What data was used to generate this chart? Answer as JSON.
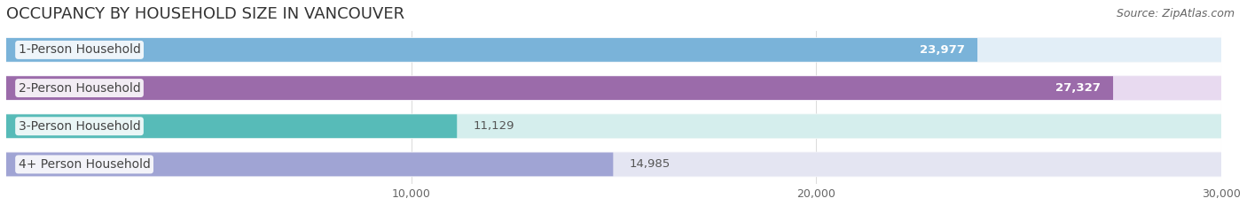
{
  "title": "OCCUPANCY BY HOUSEHOLD SIZE IN VANCOUVER",
  "source": "Source: ZipAtlas.com",
  "categories": [
    "1-Person Household",
    "2-Person Household",
    "3-Person Household",
    "4+ Person Household"
  ],
  "values": [
    23977,
    27327,
    11129,
    14985
  ],
  "bar_colors": [
    "#7ab3d9",
    "#9b6baa",
    "#57bbb8",
    "#a0a4d4"
  ],
  "bar_bg_colors": [
    "#e2eef7",
    "#e8daf0",
    "#d5eeed",
    "#e4e5f2"
  ],
  "label_text_color": "#444444",
  "value_label_colors": [
    "white",
    "white",
    "#555555",
    "#555555"
  ],
  "value_labels": [
    "23,977",
    "27,327",
    "11,129",
    "14,985"
  ],
  "xlim_max": 30000,
  "xticks": [
    10000,
    20000,
    30000
  ],
  "xtick_labels": [
    "10,000",
    "20,000",
    "30,000"
  ],
  "title_fontsize": 13,
  "source_fontsize": 9,
  "label_fontsize": 10,
  "value_fontsize": 9.5,
  "background_color": "#ffffff",
  "row_bg_colors": [
    "#f0f4f8",
    "#f4eff8",
    "#f0f8f7",
    "#f2f2f8"
  ],
  "bar_height": 0.62,
  "figsize": [
    14.06,
    2.33
  ],
  "dpi": 100
}
